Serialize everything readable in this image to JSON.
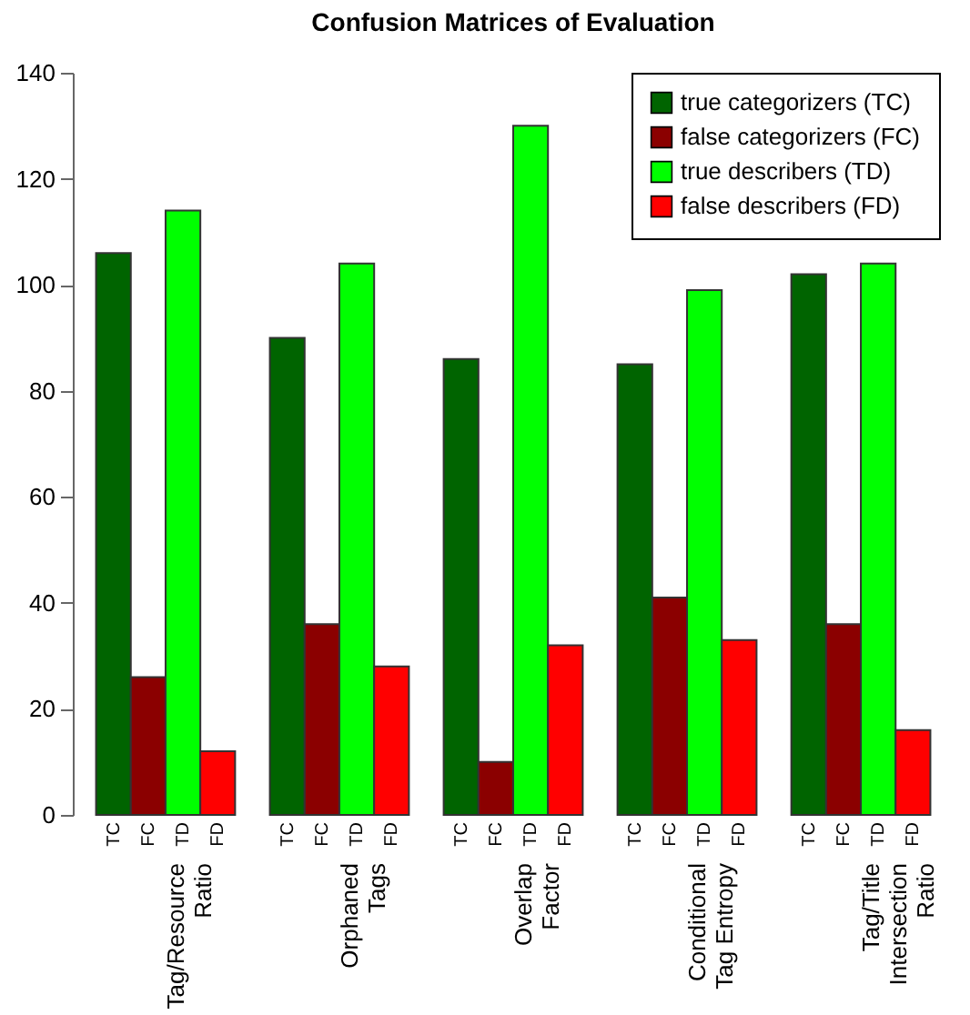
{
  "chart_data": {
    "type": "bar",
    "title": "Confusion Matrices of Evaluation",
    "categories": [
      "Tag/Resource\nRatio",
      "Orphaned\nTags",
      "Overlap\nFactor",
      "Conditional\nTag Entropy",
      "Tag/Title\nIntersection\nRatio"
    ],
    "series": [
      {
        "name": "true categorizers (TC)",
        "color": "#006400",
        "values": [
          106,
          90,
          86,
          85,
          102
        ]
      },
      {
        "name": "false categorizers (FC)",
        "color": "#8b0000",
        "values": [
          26,
          36,
          10,
          41,
          36
        ]
      },
      {
        "name": "true describers (TD)",
        "color": "#00ff00",
        "values": [
          114,
          104,
          130,
          99,
          104
        ]
      },
      {
        "name": "false describers (FD)",
        "color": "#ff0000",
        "values": [
          12,
          28,
          32,
          33,
          16
        ]
      }
    ],
    "annotations": [
      "TC",
      "FC",
      "TD",
      "FD"
    ],
    "ylim": [
      0,
      140
    ],
    "yticks": [
      0,
      20,
      40,
      60,
      80,
      100,
      120,
      140
    ],
    "grid": false,
    "legend": "top right"
  }
}
